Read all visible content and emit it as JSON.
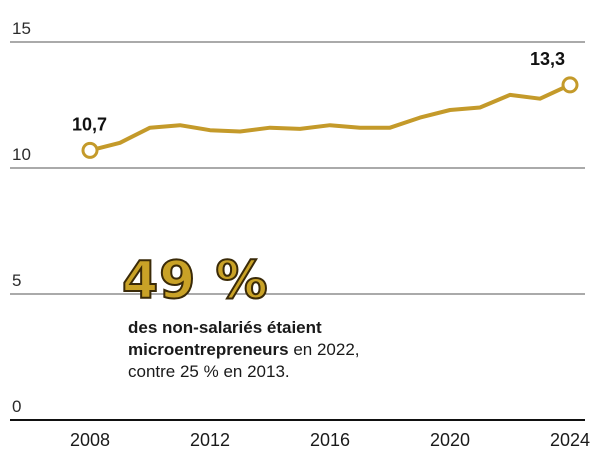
{
  "chart_data": {
    "type": "line",
    "x": [
      2008,
      2009,
      2010,
      2011,
      2012,
      2013,
      2014,
      2015,
      2016,
      2017,
      2018,
      2019,
      2020,
      2021,
      2022,
      2023,
      2024
    ],
    "y": [
      10.7,
      11.0,
      11.6,
      11.7,
      11.5,
      11.45,
      11.6,
      11.55,
      11.7,
      11.6,
      11.6,
      12.0,
      12.3,
      12.4,
      12.9,
      12.75,
      13.3
    ],
    "xticks": [
      "2008",
      "2012",
      "2016",
      "2020",
      "2024"
    ],
    "yticks": [
      "0",
      "5",
      "10",
      "15"
    ],
    "ylim": [
      0,
      15
    ],
    "xlim": [
      2008,
      2024
    ],
    "grid": true,
    "line_color": "#c49a2a",
    "annotations": {
      "first": "10,7",
      "last": "13,3"
    }
  },
  "callout": {
    "big": "49 %",
    "bold_line1": "des non-salariés étaient",
    "bold_line2": "microentrepreneurs",
    "rest_line2": " en 2022,",
    "line3": "contre 25 % en 2013."
  }
}
